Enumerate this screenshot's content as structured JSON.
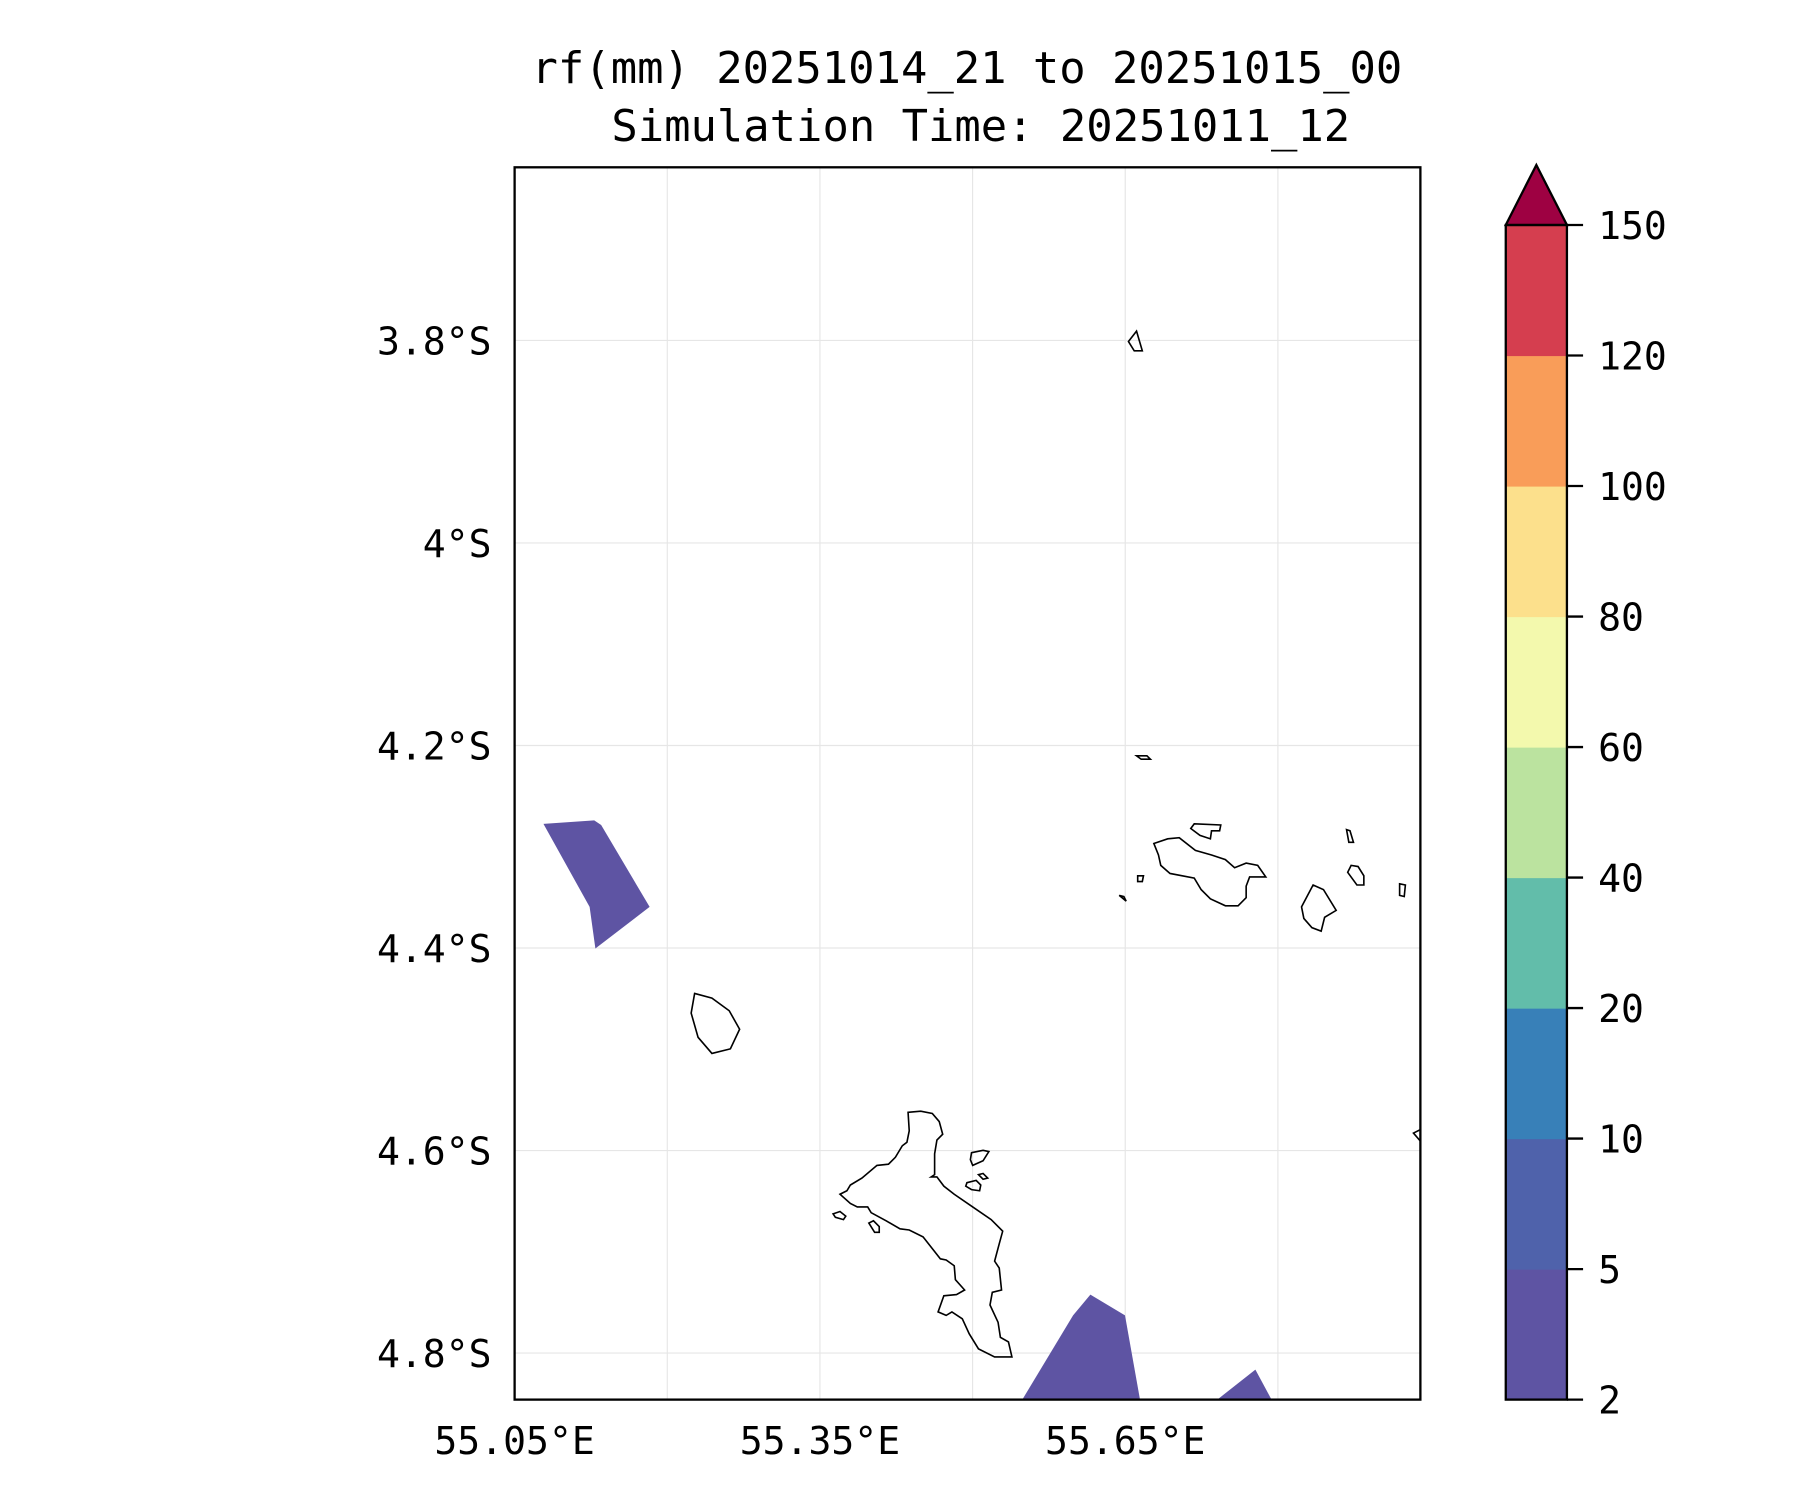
{
  "chart_data": {
    "type": "heatmap",
    "title": "rf(mm) 20251014_21 to 20251015_00",
    "subtitle": "Simulation Time: 20251011_12",
    "xlabel": "",
    "ylabel": "",
    "xlim": [
      55.05,
      55.94
    ],
    "ylim": [
      -4.846,
      -3.629
    ],
    "grid": true,
    "x_ticks": [
      {
        "value": 55.05,
        "label": "55.05°E"
      },
      {
        "value": 55.35,
        "label": "55.35°E"
      },
      {
        "value": 55.65,
        "label": "55.65°E"
      }
    ],
    "x_gridlines": [
      55.2,
      55.35,
      55.5,
      55.65,
      55.8
    ],
    "y_ticks": [
      {
        "value": -3.8,
        "label": "3.8°S"
      },
      {
        "value": -4.0,
        "label": "4°S"
      },
      {
        "value": -4.2,
        "label": "4.2°S"
      },
      {
        "value": -4.4,
        "label": "4.4°S"
      },
      {
        "value": -4.6,
        "label": "4.6°S"
      },
      {
        "value": -4.8,
        "label": "4.8°S"
      }
    ],
    "colorbar": {
      "levels": [
        2,
        5,
        10,
        20,
        40,
        60,
        80,
        100,
        120,
        150
      ],
      "labels": [
        "2",
        "5",
        "10",
        "20",
        "40",
        "60",
        "80",
        "100",
        "120",
        "150"
      ],
      "colors": [
        "#5e54a3",
        "#4f62ab",
        "#3880b8",
        "#62bdaa",
        "#bbe39f",
        "#f3f9ad",
        "#fce08c",
        "#f99d59",
        "#d53e4f"
      ],
      "extend_color": "#9e0142",
      "extend": "max"
    },
    "rain_areas": [
      {
        "level": "2-5",
        "color": "#5e54a3"
      }
    ]
  }
}
